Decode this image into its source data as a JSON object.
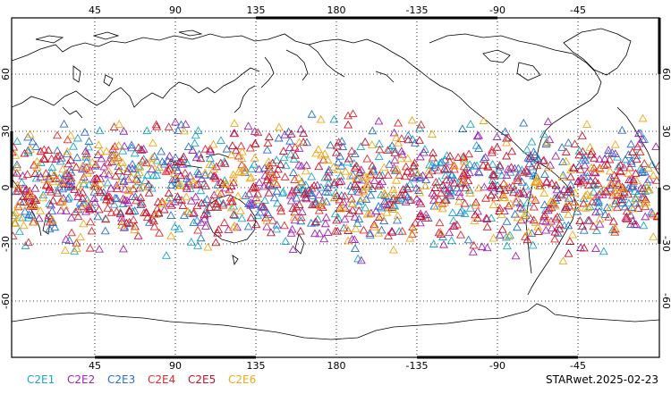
{
  "map": {
    "longitude_ticks": [
      "45",
      "90",
      "135",
      "180",
      "-135",
      "-90",
      "-45"
    ],
    "latitude_ticks": [
      "60",
      "30",
      "0",
      "-30",
      "-60"
    ],
    "grid": "dotted",
    "projection": "cylindrical, centered on 180"
  },
  "legend": {
    "items": [
      {
        "label": "C2E1",
        "color": "#1aa8c8"
      },
      {
        "label": "C2E2",
        "color": "#a024b8"
      },
      {
        "label": "C2E3",
        "color": "#2a6fd0"
      },
      {
        "label": "C2E4",
        "color": "#e0282c"
      },
      {
        "label": "C2E5",
        "color": "#c8102c"
      },
      {
        "label": "C2E6",
        "color": "#f0a818"
      }
    ]
  },
  "footer": {
    "stamp": "STARwet.2025-02-23"
  },
  "chart_data": {
    "type": "scatter",
    "marker": "open-triangle",
    "series": [
      {
        "name": "C2E1",
        "lat_range": [
          -45,
          45
        ]
      },
      {
        "name": "C2E2",
        "lat_range": [
          -45,
          45
        ]
      },
      {
        "name": "C2E3",
        "lat_range": [
          -45,
          45
        ]
      },
      {
        "name": "C2E4",
        "lat_range": [
          -45,
          45
        ]
      },
      {
        "name": "C2E5",
        "lat_range": [
          -45,
          45
        ]
      },
      {
        "name": "C2E6",
        "lat_range": [
          -45,
          45
        ]
      }
    ],
    "lon_range": [
      0,
      360
    ],
    "lat_range": [
      -90,
      90
    ]
  }
}
